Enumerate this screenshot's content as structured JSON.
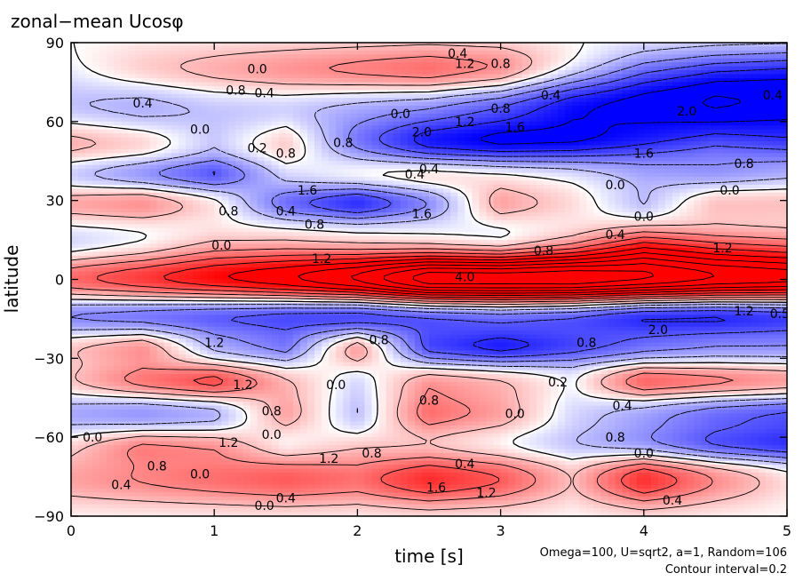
{
  "chart_data": {
    "type": "heatmap",
    "title": "zonal−mean Ucosφ",
    "xlabel": "time [s]",
    "ylabel": "latitude",
    "xlim": [
      0,
      5
    ],
    "ylim": [
      -90,
      90
    ],
    "x_ticks": [
      {
        "value": 0,
        "label": "0"
      },
      {
        "value": 1,
        "label": "1"
      },
      {
        "value": 2,
        "label": "2"
      },
      {
        "value": 3,
        "label": "3"
      },
      {
        "value": 4,
        "label": "4"
      },
      {
        "value": 5,
        "label": "5"
      }
    ],
    "y_ticks": [
      {
        "value": 90,
        "label": "90"
      },
      {
        "value": 60,
        "label": "60"
      },
      {
        "value": 30,
        "label": "30"
      },
      {
        "value": 0,
        "label": "0"
      },
      {
        "value": -30,
        "label": "−30"
      },
      {
        "value": -60,
        "label": "−60"
      },
      {
        "value": -90,
        "label": "−90"
      }
    ],
    "grid": false,
    "colors": {
      "positive": "#ff0000",
      "negative": "#0000ff",
      "zero": "#ffffff",
      "contour": "#000000"
    },
    "contour_interval": 0.2,
    "bands": [
      {
        "lat": 79,
        "width": 7,
        "points": [
          [
            0,
            0.0
          ],
          [
            0.5,
            0.4
          ],
          [
            1,
            0.6
          ],
          [
            1.5,
            0.8
          ],
          [
            2,
            1.0
          ],
          [
            2.5,
            1.2
          ],
          [
            3,
            1.0
          ],
          [
            3.5,
            0.2
          ],
          [
            4,
            -0.6
          ],
          [
            4.5,
            -1.0
          ],
          [
            5,
            -1.2
          ]
        ]
      },
      {
        "lat": 66,
        "width": 8,
        "points": [
          [
            0,
            -0.4
          ],
          [
            0.5,
            -0.6
          ],
          [
            1,
            -0.4
          ],
          [
            1.5,
            -0.4
          ],
          [
            2,
            -0.6
          ],
          [
            2.5,
            -0.8
          ],
          [
            3,
            -1.2
          ],
          [
            3.5,
            -1.8
          ],
          [
            4,
            -2.0
          ],
          [
            4.5,
            -2.2
          ],
          [
            5,
            -2.0
          ]
        ]
      },
      {
        "lat": 52,
        "width": 6,
        "points": [
          [
            0,
            0.6
          ],
          [
            0.5,
            0.4
          ],
          [
            1,
            -0.2
          ],
          [
            1.5,
            0.4
          ],
          [
            2,
            -0.8
          ],
          [
            2.5,
            -1.6
          ],
          [
            3,
            -1.8
          ],
          [
            3.5,
            -1.6
          ],
          [
            4,
            -1.2
          ],
          [
            4.5,
            -0.8
          ],
          [
            5,
            -1.0
          ]
        ]
      },
      {
        "lat": 40,
        "width": 5,
        "points": [
          [
            0,
            -0.4
          ],
          [
            0.5,
            -0.8
          ],
          [
            1,
            -1.2
          ],
          [
            1.5,
            -0.2
          ],
          [
            2,
            0.2
          ],
          [
            2.5,
            0.4
          ],
          [
            3,
            0.2
          ],
          [
            3.5,
            0.0
          ],
          [
            4,
            -0.4
          ],
          [
            4.5,
            -0.6
          ],
          [
            5,
            -0.4
          ]
        ]
      },
      {
        "lat": 29,
        "width": 5,
        "points": [
          [
            0,
            0.6
          ],
          [
            0.5,
            0.8
          ],
          [
            1,
            0.2
          ],
          [
            1.5,
            -1.0
          ],
          [
            2,
            -1.6
          ],
          [
            2.5,
            -0.8
          ],
          [
            3,
            0.6
          ],
          [
            3.5,
            0.2
          ],
          [
            4,
            -0.4
          ],
          [
            4.5,
            0.4
          ],
          [
            5,
            0.4
          ]
        ]
      },
      {
        "lat": 12,
        "width": 6,
        "points": [
          [
            0,
            -0.4
          ],
          [
            0.5,
            -0.2
          ],
          [
            1,
            0.2
          ],
          [
            1.5,
            0.2
          ],
          [
            2,
            0.0
          ],
          [
            2.5,
            -0.2
          ],
          [
            3,
            -0.4
          ],
          [
            3.5,
            0.2
          ],
          [
            4,
            1.2
          ],
          [
            4.5,
            0.8
          ],
          [
            5,
            0.6
          ]
        ]
      },
      {
        "lat": 0,
        "width": 7,
        "points": [
          [
            0,
            1.2
          ],
          [
            0.5,
            1.6
          ],
          [
            1,
            2.0
          ],
          [
            1.5,
            2.4
          ],
          [
            2,
            3.0
          ],
          [
            2.5,
            4.0
          ],
          [
            3,
            4.0
          ],
          [
            3.5,
            4.0
          ],
          [
            4,
            3.6
          ],
          [
            4.5,
            3.2
          ],
          [
            5,
            3.0
          ]
        ]
      },
      {
        "lat": -13,
        "width": 6,
        "points": [
          [
            0,
            -1.0
          ],
          [
            0.5,
            -1.2
          ],
          [
            1,
            -1.4
          ],
          [
            1.5,
            -1.6
          ],
          [
            2,
            -1.8
          ],
          [
            2.5,
            -1.6
          ],
          [
            3,
            -1.4
          ],
          [
            3.5,
            -1.6
          ],
          [
            4,
            -2.0
          ],
          [
            4.5,
            -2.0
          ],
          [
            5,
            -1.8
          ]
        ]
      },
      {
        "lat": -26,
        "width": 5,
        "points": [
          [
            0,
            0.4
          ],
          [
            0.5,
            0.8
          ],
          [
            1,
            -0.4
          ],
          [
            1.5,
            -0.8
          ],
          [
            2,
            0.8
          ],
          [
            2.5,
            -1.2
          ],
          [
            3,
            -1.6
          ],
          [
            3.5,
            -1.2
          ],
          [
            4,
            -0.8
          ],
          [
            4.5,
            -0.6
          ],
          [
            5,
            -0.6
          ]
        ]
      },
      {
        "lat": -39,
        "width": 5,
        "points": [
          [
            0,
            0.4
          ],
          [
            0.5,
            1.0
          ],
          [
            1,
            1.4
          ],
          [
            1.5,
            0.4
          ],
          [
            2,
            -0.2
          ],
          [
            2.5,
            0.6
          ],
          [
            3,
            0.4
          ],
          [
            3.5,
            0.0
          ],
          [
            4,
            1.2
          ],
          [
            4.5,
            1.0
          ],
          [
            5,
            0.8
          ]
        ]
      },
      {
        "lat": -51,
        "width": 6,
        "points": [
          [
            0,
            -0.6
          ],
          [
            0.5,
            -0.8
          ],
          [
            1,
            -0.6
          ],
          [
            1.5,
            0.6
          ],
          [
            2,
            -0.4
          ],
          [
            2.5,
            1.0
          ],
          [
            3,
            0.6
          ],
          [
            3.5,
            -0.2
          ],
          [
            4,
            -0.6
          ],
          [
            4.5,
            -1.0
          ],
          [
            5,
            -1.2
          ]
        ]
      },
      {
        "lat": -63,
        "width": 5,
        "points": [
          [
            0,
            0.2
          ],
          [
            0.5,
            0.8
          ],
          [
            1,
            0.6
          ],
          [
            1.5,
            -0.2
          ],
          [
            2,
            0.2
          ],
          [
            2.5,
            0.0
          ],
          [
            3,
            -0.2
          ],
          [
            3.5,
            -0.4
          ],
          [
            4,
            -0.8
          ],
          [
            4.5,
            -1.2
          ],
          [
            5,
            -1.4
          ]
        ]
      },
      {
        "lat": -76,
        "width": 7,
        "points": [
          [
            0,
            0.6
          ],
          [
            0.5,
            0.8
          ],
          [
            1,
            1.0
          ],
          [
            1.5,
            1.2
          ],
          [
            2,
            1.0
          ],
          [
            2.5,
            1.6
          ],
          [
            3,
            1.2
          ],
          [
            3.5,
            0.4
          ],
          [
            4,
            1.6
          ],
          [
            4.5,
            0.8
          ],
          [
            5,
            0.2
          ]
        ]
      }
    ],
    "contour_labels": [
      {
        "t": 0.35,
        "lat": -78,
        "label": "0.4"
      },
      {
        "t": 0.6,
        "lat": -71,
        "label": "0.8"
      },
      {
        "t": 0.9,
        "lat": -74,
        "label": "0.0"
      },
      {
        "t": 1.1,
        "lat": -62,
        "label": "1.2"
      },
      {
        "t": 1.4,
        "lat": -59,
        "label": "0.0"
      },
      {
        "t": 1.35,
        "lat": -86,
        "label": "0.0"
      },
      {
        "t": 1.5,
        "lat": -83,
        "label": "0.4"
      },
      {
        "t": 1.8,
        "lat": -68,
        "label": "1.2"
      },
      {
        "t": 2.1,
        "lat": -66,
        "label": "0.8"
      },
      {
        "t": 2.75,
        "lat": -70,
        "label": "0.4"
      },
      {
        "t": 2.55,
        "lat": -79,
        "label": "1.6"
      },
      {
        "t": 2.9,
        "lat": -81,
        "label": "1.2"
      },
      {
        "t": 4.0,
        "lat": -66,
        "label": "0.0"
      },
      {
        "t": 4.2,
        "lat": -84,
        "label": "0.4"
      },
      {
        "t": 0.15,
        "lat": -60,
        "label": "0.0"
      },
      {
        "t": 1.4,
        "lat": -50,
        "label": "0.8"
      },
      {
        "t": 2.5,
        "lat": -46,
        "label": "0.8"
      },
      {
        "t": 3.1,
        "lat": -51,
        "label": "0.0"
      },
      {
        "t": 3.85,
        "lat": -48,
        "label": "0.4"
      },
      {
        "t": 3.8,
        "lat": -60,
        "label": "0.8"
      },
      {
        "t": 1.2,
        "lat": -40,
        "label": "1.2"
      },
      {
        "t": 1.85,
        "lat": -40,
        "label": "0.0"
      },
      {
        "t": 3.4,
        "lat": -39,
        "label": "0.2"
      },
      {
        "t": 1.0,
        "lat": -24,
        "label": "1.2"
      },
      {
        "t": 2.15,
        "lat": -23,
        "label": "0.8"
      },
      {
        "t": 3.6,
        "lat": -24,
        "label": "0.8"
      },
      {
        "t": 4.1,
        "lat": -19,
        "label": "2.0"
      },
      {
        "t": 4.7,
        "lat": -12,
        "label": "1.2"
      },
      {
        "t": 4.95,
        "lat": -13,
        "label": "0.5"
      },
      {
        "t": 2.75,
        "lat": 1,
        "label": "4.0"
      },
      {
        "t": 1.05,
        "lat": 13,
        "label": "0.0"
      },
      {
        "t": 1.75,
        "lat": 8,
        "label": "1.2"
      },
      {
        "t": 3.8,
        "lat": 17,
        "label": "0.4"
      },
      {
        "t": 3.3,
        "lat": 11,
        "label": "0.8"
      },
      {
        "t": 4.0,
        "lat": 24,
        "label": "0.0"
      },
      {
        "t": 4.55,
        "lat": 12,
        "label": "1.2"
      },
      {
        "t": 1.1,
        "lat": 26,
        "label": "0.8"
      },
      {
        "t": 1.5,
        "lat": 26,
        "label": "0.4"
      },
      {
        "t": 1.7,
        "lat": 21,
        "label": "0.8"
      },
      {
        "t": 2.45,
        "lat": 25,
        "label": "1.6"
      },
      {
        "t": 2.4,
        "lat": 40,
        "label": "0.4"
      },
      {
        "t": 1.65,
        "lat": 34,
        "label": "1.6"
      },
      {
        "t": 3.8,
        "lat": 36,
        "label": "0.0"
      },
      {
        "t": 4.6,
        "lat": 34,
        "label": "0.0"
      },
      {
        "t": 1.3,
        "lat": 50,
        "label": "0.2"
      },
      {
        "t": 1.5,
        "lat": 48,
        "label": "0.8"
      },
      {
        "t": 1.9,
        "lat": 52,
        "label": "0.8"
      },
      {
        "t": 2.5,
        "lat": 42,
        "label": "0.4"
      },
      {
        "t": 4.0,
        "lat": 48,
        "label": "1.6"
      },
      {
        "t": 4.7,
        "lat": 44,
        "label": "0.8"
      },
      {
        "t": 0.9,
        "lat": 57,
        "label": "0.0"
      },
      {
        "t": 2.45,
        "lat": 56,
        "label": "2.0"
      },
      {
        "t": 2.75,
        "lat": 60,
        "label": "1.2"
      },
      {
        "t": 3.1,
        "lat": 58,
        "label": "1.6"
      },
      {
        "t": 3.0,
        "lat": 65,
        "label": "0.8"
      },
      {
        "t": 0.5,
        "lat": 67,
        "label": "0.4"
      },
      {
        "t": 1.15,
        "lat": 72,
        "label": "0.8"
      },
      {
        "t": 1.35,
        "lat": 71,
        "label": "0.4"
      },
      {
        "t": 2.3,
        "lat": 63,
        "label": "0.0"
      },
      {
        "t": 3.35,
        "lat": 70,
        "label": "0.4"
      },
      {
        "t": 4.3,
        "lat": 64,
        "label": "2.0"
      },
      {
        "t": 4.9,
        "lat": 70,
        "label": "0.4"
      },
      {
        "t": 1.3,
        "lat": 80,
        "label": "0.0"
      },
      {
        "t": 2.75,
        "lat": 82,
        "label": "1.2"
      },
      {
        "t": 3.0,
        "lat": 82,
        "label": "0.8"
      },
      {
        "t": 2.7,
        "lat": 86,
        "label": "0.4"
      }
    ]
  },
  "footnote": {
    "line1": "Omega=100, U=sqrt2, a=1, Random=106",
    "line2": "Contour interval=0.2"
  }
}
